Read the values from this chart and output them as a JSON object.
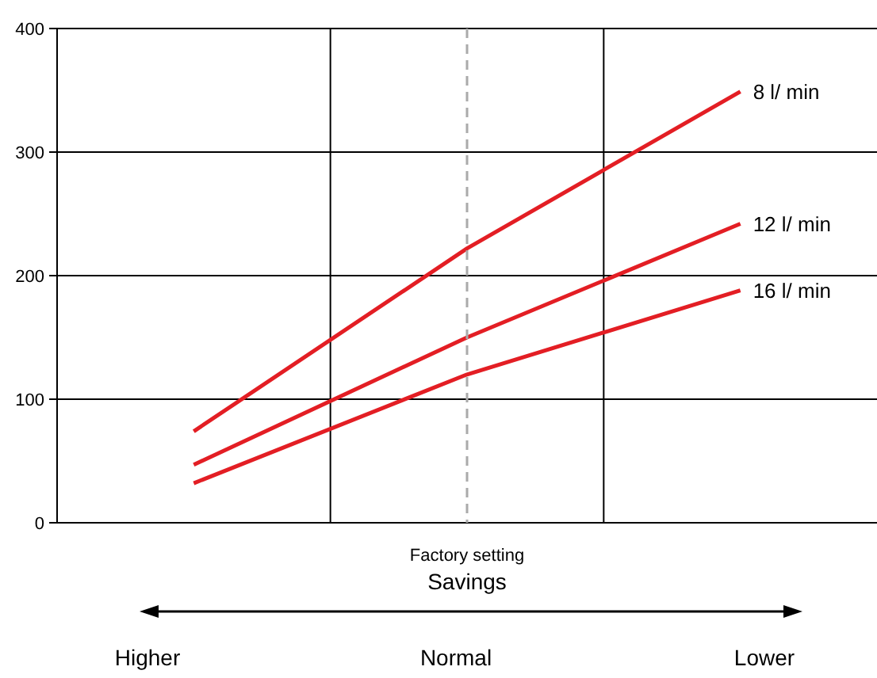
{
  "chart_data": {
    "type": "line",
    "categories": [
      null,
      null,
      null
    ],
    "ylim": [
      0,
      400
    ],
    "yticks": [
      0,
      100,
      200,
      300,
      400
    ],
    "grid": true,
    "line_style": "solid",
    "series": [
      {
        "name": "8 l/ min",
        "color": "#e31e24",
        "values": [
          74,
          222,
          349
        ]
      },
      {
        "name": "12 l/ min",
        "color": "#e31e24",
        "values": [
          47,
          150,
          242
        ]
      },
      {
        "name": "16 l/ min",
        "color": "#e31e24",
        "values": [
          32,
          120,
          188
        ]
      }
    ],
    "annotations": [
      "Factory setting",
      "Savings",
      "Higher",
      "Normal",
      "Lower"
    ]
  }
}
